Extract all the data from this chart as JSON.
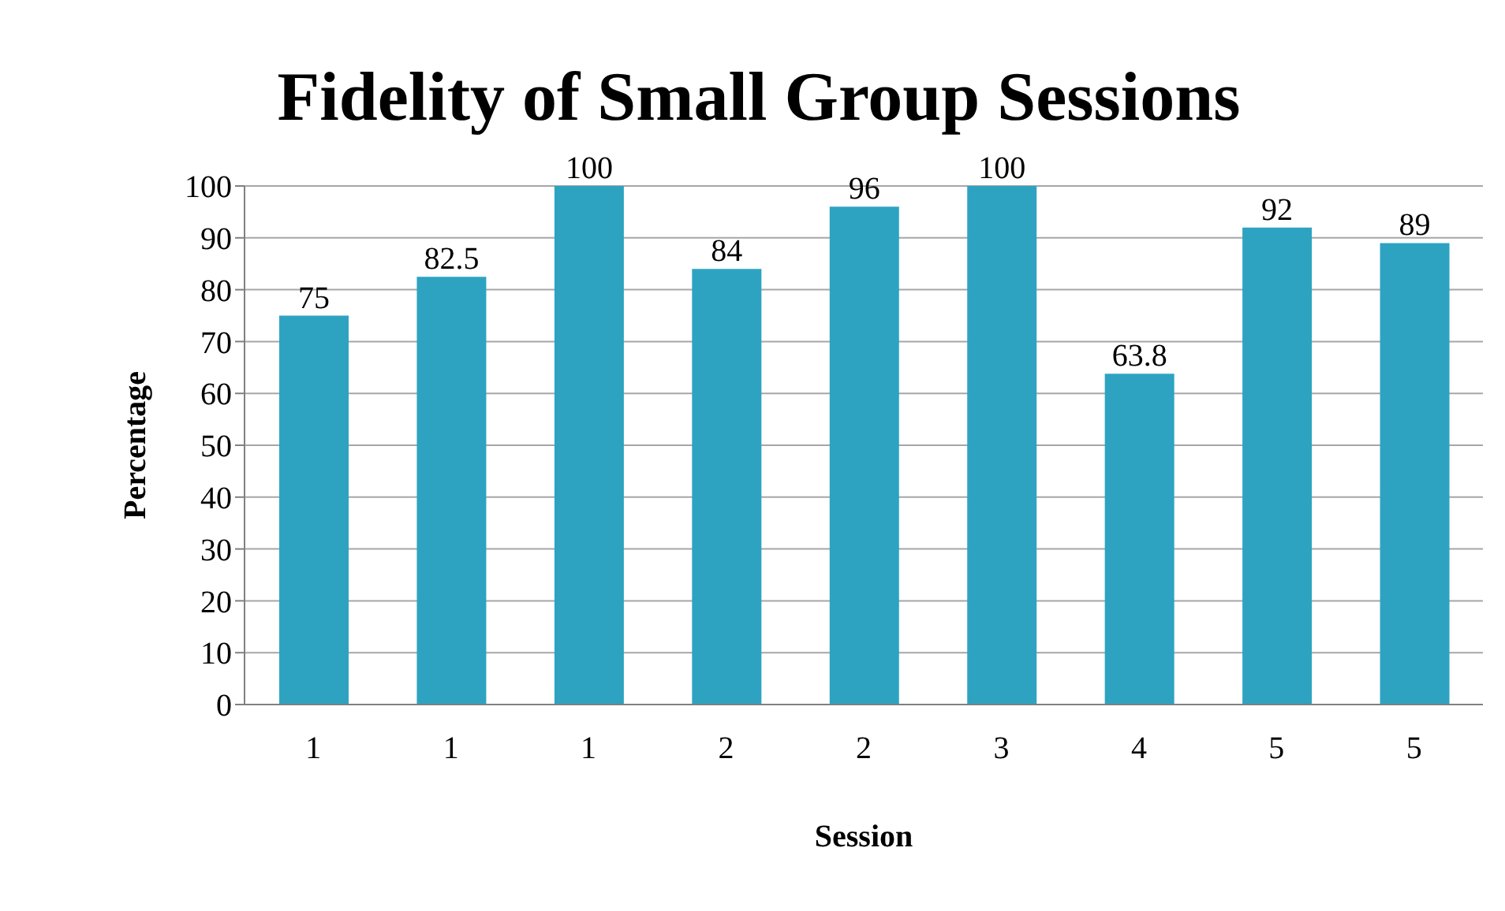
{
  "chart_data": {
    "type": "bar",
    "title": "Fidelity of Small Group Sessions",
    "xlabel": "Session",
    "ylabel": "Percentage",
    "categories": [
      "1",
      "1",
      "1",
      "2",
      "2",
      "3",
      "4",
      "5",
      "5"
    ],
    "values": [
      75,
      82.5,
      100,
      84,
      96,
      100,
      63.8,
      92,
      89
    ],
    "color": "#2ea3c1",
    "ylim": [
      0,
      100
    ],
    "yticks": [
      0,
      10,
      20,
      30,
      40,
      50,
      60,
      70,
      80,
      90,
      100
    ],
    "grid": "y",
    "data_labels": true,
    "legend": false
  }
}
